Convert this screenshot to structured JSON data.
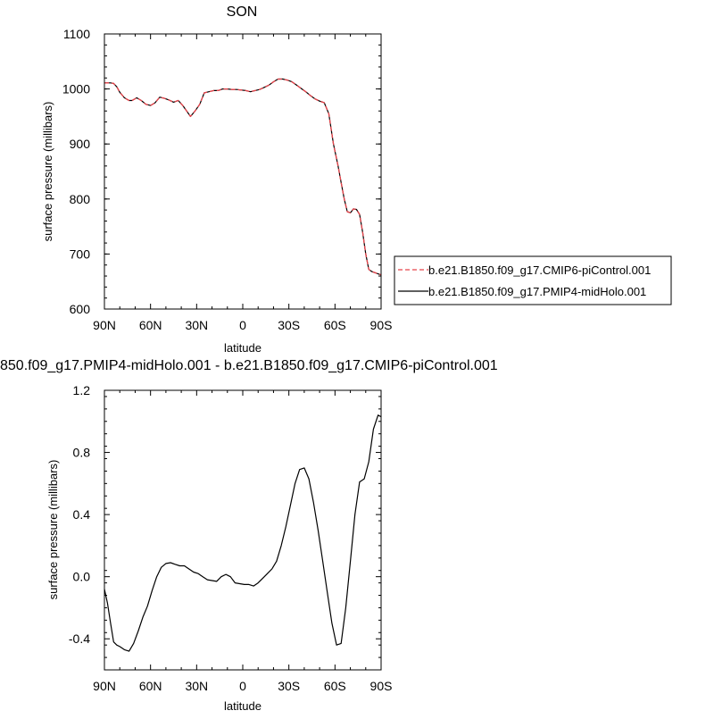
{
  "figure": {
    "top_title": "SON",
    "bottom_title": "850.f09_g17.PMIP4-midHolo.001 - b.e21.B1850.f09_g17.CMIP6-piControl.001"
  },
  "legend": {
    "items": [
      {
        "label": "b.e21.B1850.f09_g17.CMIP6-piControl.001",
        "color": "#e8434a",
        "style": "dashed"
      },
      {
        "label": "b.e21.B1850.f09_g17.PMIP4-midHolo.001",
        "color": "#000000",
        "style": "solid"
      }
    ]
  },
  "chart_data": [
    {
      "type": "line",
      "title": "SON",
      "xlabel": "latitude",
      "ylabel": "surface pressure (millibars)",
      "xlim": [
        90,
        -90
      ],
      "ylim": [
        600,
        1100
      ],
      "x_ticks": [
        90,
        60,
        30,
        0,
        -30,
        -60,
        -90
      ],
      "x_tick_labels": [
        "90N",
        "60N",
        "30N",
        "0",
        "30S",
        "60S",
        "90S"
      ],
      "y_ticks": [
        600,
        700,
        800,
        900,
        1000,
        1100
      ],
      "y_tick_labels": [
        "600",
        "700",
        "800",
        "900",
        "1000",
        "1100"
      ],
      "x": [
        90,
        86,
        84,
        82,
        80,
        77,
        74,
        72,
        69,
        66,
        63,
        60,
        57,
        54,
        51,
        48,
        45,
        42,
        39,
        36,
        34,
        31,
        28,
        25,
        22,
        19,
        16,
        13,
        10,
        7,
        4,
        1,
        -2,
        -5,
        -8,
        -11,
        -14,
        -17,
        -20,
        -23,
        -26,
        -29,
        -32,
        -35,
        -38,
        -41,
        -44,
        -47,
        -50,
        -53,
        -56,
        -59,
        -62,
        -64,
        -66,
        -68,
        -70,
        -72,
        -74,
        -76,
        -78,
        -80,
        -82,
        -84,
        -86,
        -88,
        -90
      ],
      "series": [
        {
          "name": "b.e21.B1850.f09_g17.CMIP6-piControl.001",
          "color": "#e8434a",
          "dash": "dashed",
          "values": [
            1011,
            1011,
            1010,
            1004,
            994,
            984,
            979,
            979,
            984,
            979,
            972,
            970,
            975,
            985,
            983,
            980,
            976,
            979,
            970,
            958,
            950,
            960,
            972,
            993,
            995,
            997,
            997,
            1000,
            1000,
            999,
            999,
            998,
            997,
            995,
            997,
            999,
            1003,
            1007,
            1013,
            1018,
            1018,
            1016,
            1013,
            1007,
            1001,
            995,
            988,
            982,
            978,
            975,
            955,
            900,
            860,
            830,
            800,
            777,
            775,
            782,
            781,
            772,
            740,
            700,
            672,
            668,
            666,
            664,
            662
          ]
        },
        {
          "name": "b.e21.B1850.f09_g17.PMIP4-midHolo.001",
          "color": "#000000",
          "dash": "solid",
          "values": [
            1011,
            1011,
            1010,
            1004,
            994,
            984,
            979,
            979,
            984,
            979,
            972,
            970,
            975,
            985,
            983,
            980,
            976,
            979,
            970,
            958,
            950,
            960,
            972,
            993,
            995,
            997,
            997,
            1000,
            1000,
            999,
            999,
            998,
            997,
            995,
            997,
            999,
            1003,
            1007,
            1013,
            1018,
            1018,
            1016,
            1013,
            1007,
            1001,
            995,
            988,
            982,
            978,
            975,
            955,
            900,
            860,
            830,
            800,
            777,
            775,
            782,
            781,
            772,
            740,
            700,
            672,
            668,
            666,
            664,
            662
          ]
        }
      ]
    },
    {
      "type": "line",
      "title": "850.f09_g17.PMIP4-midHolo.001 - b.e21.B1850.f09_g17.CMIP6-piControl.001",
      "xlabel": "latitude",
      "ylabel": "surface pressure (millibars)",
      "xlim": [
        90,
        -90
      ],
      "ylim": [
        -0.6,
        1.2
      ],
      "x_ticks": [
        90,
        60,
        30,
        0,
        -30,
        -60,
        -90
      ],
      "x_tick_labels": [
        "90N",
        "60N",
        "30N",
        "0",
        "30S",
        "60S",
        "90S"
      ],
      "y_ticks": [
        -0.4,
        0.0,
        0.4,
        0.8,
        1.2
      ],
      "y_tick_labels": [
        "-0.4",
        "0.0",
        "0.4",
        "0.8",
        "1.2"
      ],
      "x": [
        90,
        88,
        86,
        84,
        82,
        80,
        77,
        74,
        71,
        68,
        65,
        62,
        59,
        56,
        53,
        50,
        47,
        44,
        41,
        38,
        35,
        32,
        29,
        26,
        23,
        20,
        17,
        14,
        11,
        8,
        5,
        2,
        -1,
        -4,
        -7,
        -10,
        -13,
        -16,
        -19,
        -22,
        -25,
        -28,
        -31,
        -34,
        -37,
        -40,
        -43,
        -46,
        -49,
        -52,
        -55,
        -58,
        -61,
        -64,
        -67,
        -70,
        -73,
        -76,
        -79,
        -82,
        -85,
        -88,
        -90
      ],
      "series": [
        {
          "name": "",
          "color": "#000000",
          "dash": "solid",
          "values": [
            -0.08,
            -0.17,
            -0.3,
            -0.42,
            -0.44,
            -0.45,
            -0.47,
            -0.48,
            -0.43,
            -0.35,
            -0.26,
            -0.19,
            -0.09,
            0.0,
            0.06,
            0.085,
            0.09,
            0.08,
            0.07,
            0.07,
            0.05,
            0.03,
            0.02,
            0.0,
            -0.02,
            -0.025,
            -0.03,
            0.0,
            0.015,
            0.0,
            -0.04,
            -0.045,
            -0.05,
            -0.05,
            -0.06,
            -0.04,
            -0.01,
            0.02,
            0.05,
            0.1,
            0.2,
            0.32,
            0.46,
            0.6,
            0.69,
            0.7,
            0.63,
            0.48,
            0.3,
            0.1,
            -0.1,
            -0.3,
            -0.44,
            -0.43,
            -0.2,
            0.1,
            0.4,
            0.61,
            0.63,
            0.74,
            0.95,
            1.04,
            1.03
          ]
        }
      ]
    }
  ]
}
